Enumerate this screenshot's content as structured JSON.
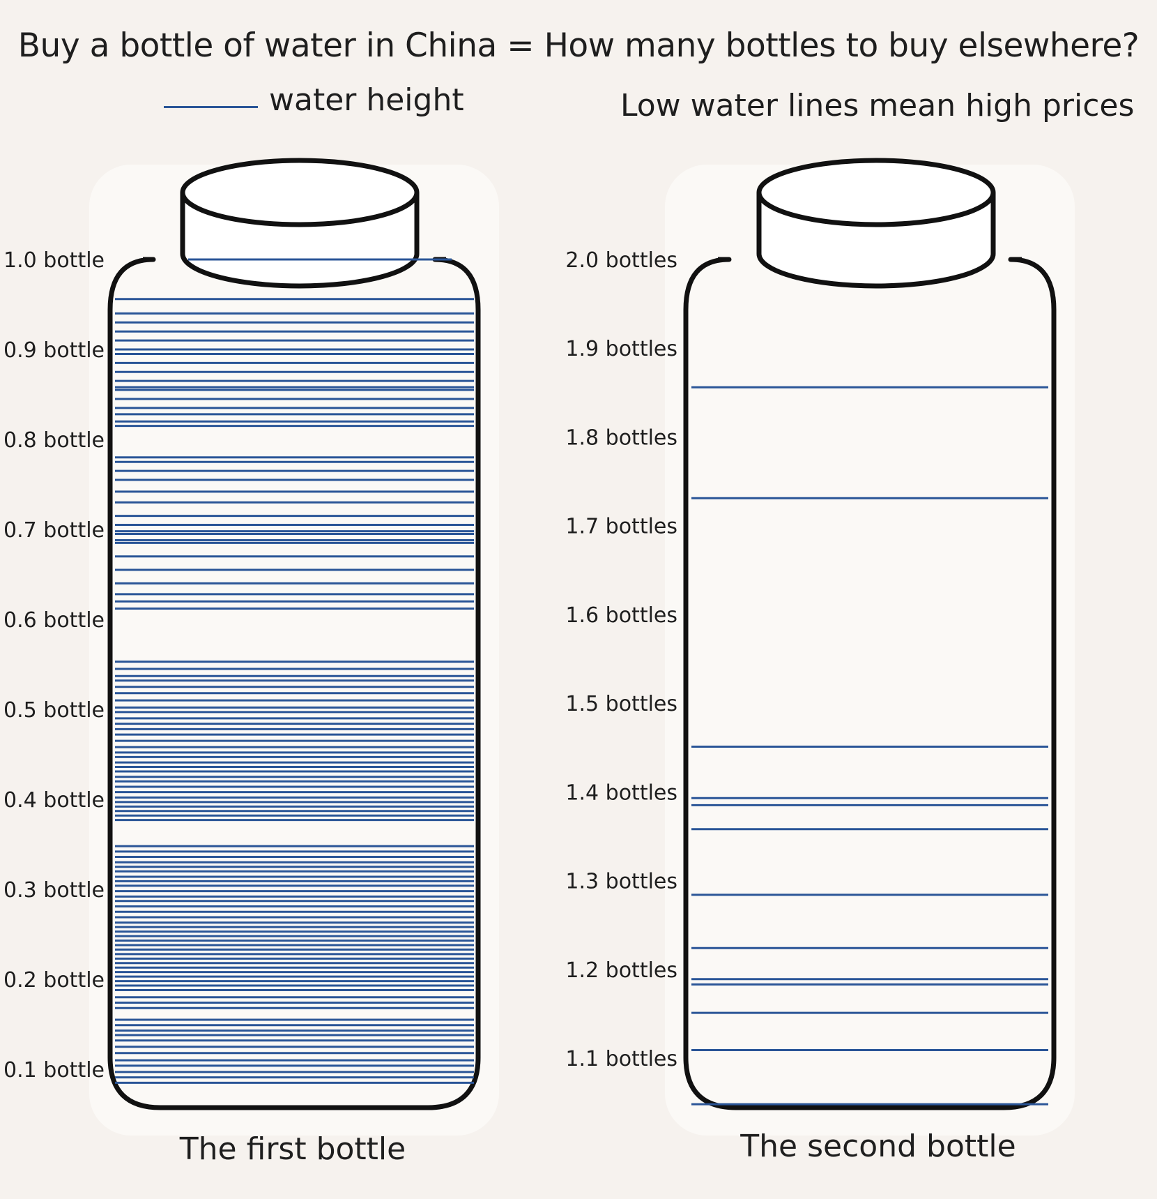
{
  "header": {
    "title": "Buy a bottle of water in China = How many bottles to buy elsewhere?",
    "legend_label": "water height",
    "subtitle": "Low water lines mean high prices"
  },
  "colors": {
    "line": "#2a5597",
    "outline": "#111111",
    "background": "#f6f2ee"
  },
  "chart_data": [
    {
      "type": "line",
      "name": "The first bottle",
      "ylim": [
        0.05,
        1.0
      ],
      "yticks": [
        1.0,
        0.9,
        0.8,
        0.7,
        0.6,
        0.5,
        0.4,
        0.3,
        0.2,
        0.1
      ],
      "yticklabels": [
        "1.0 bottle",
        "0.9 bottle",
        "0.8 bottle",
        "0.7 bottle",
        "0.6 bottle",
        "0.5 bottle",
        "0.4 bottle",
        "0.3 bottle",
        "0.2 bottle",
        "0.1 bottle"
      ],
      "values": [
        1.0,
        0.956,
        0.94,
        0.93,
        0.92,
        0.91,
        0.9,
        0.895,
        0.885,
        0.875,
        0.865,
        0.858,
        0.855,
        0.845,
        0.835,
        0.828,
        0.82,
        0.815,
        0.78,
        0.775,
        0.765,
        0.755,
        0.742,
        0.73,
        0.715,
        0.705,
        0.698,
        0.695,
        0.688,
        0.685,
        0.67,
        0.655,
        0.64,
        0.628,
        0.62,
        0.612,
        0.553,
        0.545,
        0.537,
        0.532,
        0.525,
        0.518,
        0.51,
        0.502,
        0.497,
        0.49,
        0.484,
        0.478,
        0.472,
        0.465,
        0.458,
        0.452,
        0.447,
        0.441,
        0.436,
        0.431,
        0.425,
        0.42,
        0.414,
        0.408,
        0.402,
        0.397,
        0.392,
        0.387,
        0.382,
        0.377,
        0.348,
        0.342,
        0.336,
        0.33,
        0.325,
        0.32,
        0.314,
        0.309,
        0.304,
        0.298,
        0.292,
        0.287,
        0.281,
        0.275,
        0.269,
        0.263,
        0.258,
        0.253,
        0.248,
        0.243,
        0.238,
        0.233,
        0.228,
        0.223,
        0.218,
        0.213,
        0.208,
        0.203,
        0.198,
        0.193,
        0.188,
        0.18,
        0.174,
        0.168,
        0.155,
        0.149,
        0.143,
        0.138,
        0.132,
        0.125,
        0.118,
        0.11,
        0.104,
        0.097,
        0.091,
        0.085
      ]
    },
    {
      "type": "line",
      "name": "The second bottle",
      "ylim": [
        1.0,
        2.0
      ],
      "yticks": [
        2.0,
        1.9,
        1.8,
        1.7,
        1.6,
        1.5,
        1.4,
        1.3,
        1.2,
        1.1
      ],
      "yticklabels": [
        "2.0 bottles",
        "1.9 bottles",
        "1.8 bottles",
        "1.7 bottles",
        "1.6 bottles",
        "1.5 bottles",
        "1.4 bottles",
        "1.3 bottles",
        "1.2 bottles",
        "1.1 bottles"
      ],
      "values": [
        1.856,
        1.731,
        1.451,
        1.393,
        1.385,
        1.358,
        1.284,
        1.224,
        1.189,
        1.183,
        1.151,
        1.109,
        1.048
      ]
    }
  ]
}
